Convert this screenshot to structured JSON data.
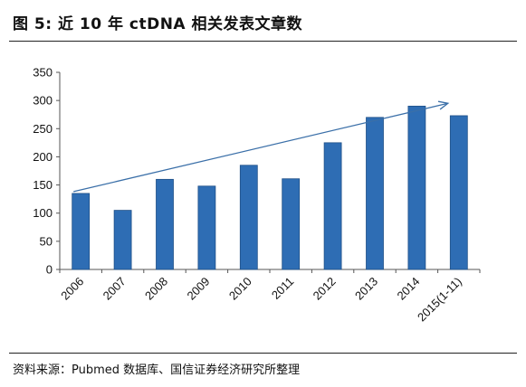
{
  "page": {
    "title": "图 5:  近 10 年 ctDNA 相关发表文章数",
    "source": "资料来源：Pubmed 数据库、国信证券经济研究所整理"
  },
  "colors": {
    "bar": "#2E6DB4",
    "bar_stroke": "#1f4f87",
    "trend": "#3a6fa8",
    "axis": "#555555"
  },
  "chart_data": {
    "type": "bar",
    "title": "",
    "xlabel": "",
    "ylabel": "",
    "categories": [
      "2006",
      "2007",
      "2008",
      "2009",
      "2010",
      "2011",
      "2012",
      "2013",
      "2014",
      "2015(1-11)"
    ],
    "values": [
      135,
      105,
      160,
      148,
      185,
      161,
      225,
      270,
      290,
      273
    ],
    "ylim": [
      0,
      350
    ],
    "yticks": [
      0,
      50,
      100,
      150,
      200,
      250,
      300,
      350
    ],
    "grid": false,
    "legend": "none",
    "annotations": [
      {
        "type": "trend-arrow",
        "from": {
          "x": "2006",
          "y": 135
        },
        "to": {
          "x": "2015(1-11)",
          "y": 295
        }
      }
    ]
  }
}
